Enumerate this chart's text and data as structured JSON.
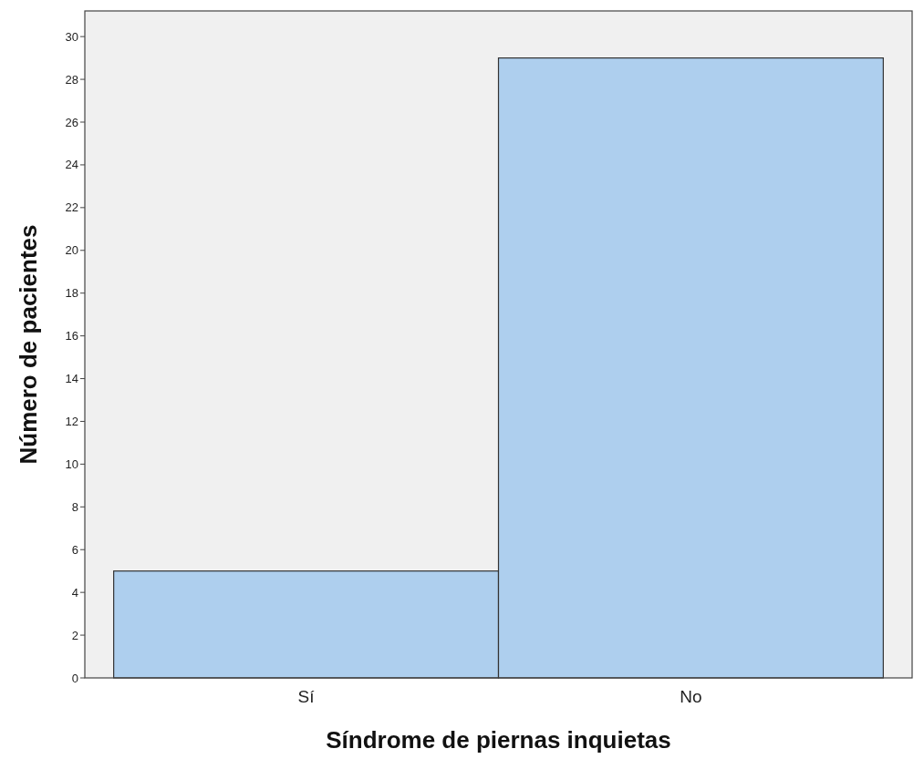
{
  "chart_data": {
    "type": "bar",
    "xlabel": "Síndrome de piernas inquietas",
    "ylabel": "Número de pacientes",
    "categories": [
      "Sí",
      "No"
    ],
    "values": [
      5,
      29
    ],
    "color": "#aecfee",
    "ylim": [
      0,
      31.2
    ],
    "yticks": [
      0,
      2,
      4,
      6,
      8,
      10,
      12,
      14,
      16,
      18,
      20,
      22,
      24,
      26,
      28,
      30
    ],
    "grid": false
  }
}
